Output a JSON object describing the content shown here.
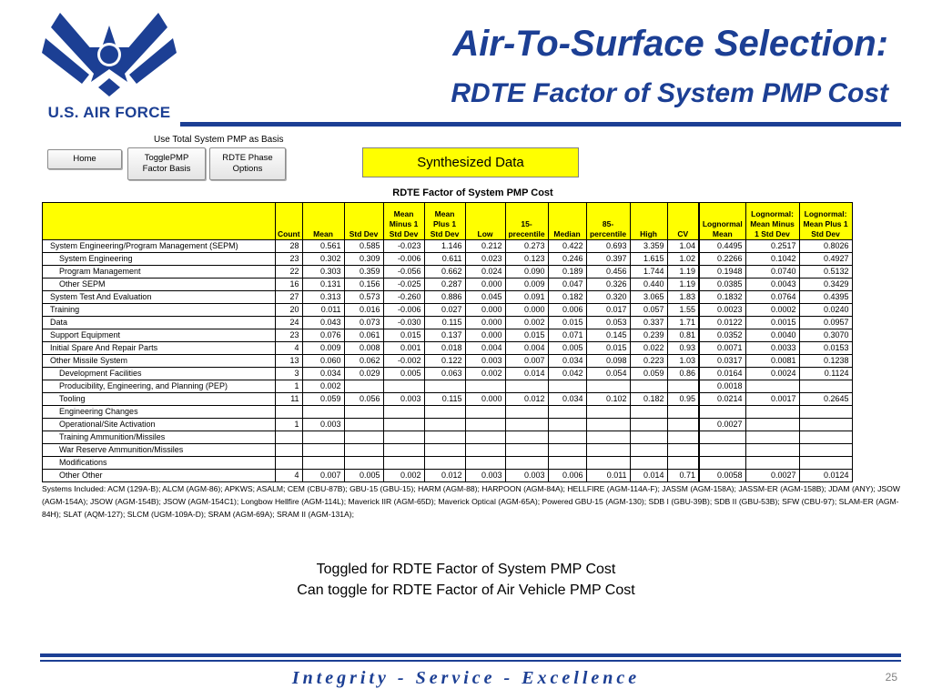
{
  "branding": {
    "wordmark": "U.S. AIR FORCE",
    "brand_color": "#1c3f94"
  },
  "slide": {
    "title_line1": "Air-To-Surface Selection:",
    "title_line2": "RDTE Factor of System PMP Cost",
    "caption_line1": "Toggled for RDTE Factor of System PMP Cost",
    "caption_line2": "Can toggle for RDTE Factor of Air Vehicle PMP Cost",
    "motto": "Integrity - Service - Excellence",
    "page_number": "25"
  },
  "spreadsheet": {
    "basis_label": "Use Total System PMP as Basis",
    "buttons": {
      "home": "Home",
      "toggle_line1": "TogglePMP",
      "toggle_line2": "Factor Basis",
      "rdte_line1": "RDTE Phase",
      "rdte_line2": "Options"
    },
    "highlight_label": "Synthesized Data",
    "highlight_color": "#ffff00",
    "table_title": "RDTE Factor of System PMP Cost",
    "headers": [
      "Count",
      "Mean",
      "Std Dev",
      "Mean Minus 1 Std Dev",
      "Mean Plus 1 Std Dev",
      "Low",
      "15-precentile",
      "Median",
      "85-percentile",
      "High",
      "CV",
      "Lognormal Mean",
      "Lognormal: Mean Minus 1 Std Dev",
      "Lognormal: Mean Plus 1 Std Dev"
    ],
    "rows": [
      {
        "label": "System Engineering/Program Management (SEPM)",
        "indent": false,
        "cells": [
          "28",
          "0.561",
          "0.585",
          "-0.023",
          "1.146",
          "0.212",
          "0.273",
          "0.422",
          "0.693",
          "3.359",
          "1.04",
          "0.4495",
          "0.2517",
          "0.8026"
        ]
      },
      {
        "label": "System Engineering",
        "indent": true,
        "cells": [
          "23",
          "0.302",
          "0.309",
          "-0.006",
          "0.611",
          "0.023",
          "0.123",
          "0.246",
          "0.397",
          "1.615",
          "1.02",
          "0.2266",
          "0.1042",
          "0.4927"
        ]
      },
      {
        "label": "Program Management",
        "indent": true,
        "cells": [
          "22",
          "0.303",
          "0.359",
          "-0.056",
          "0.662",
          "0.024",
          "0.090",
          "0.189",
          "0.456",
          "1.744",
          "1.19",
          "0.1948",
          "0.0740",
          "0.5132"
        ]
      },
      {
        "label": "Other SEPM",
        "indent": true,
        "cells": [
          "16",
          "0.131",
          "0.156",
          "-0.025",
          "0.287",
          "0.000",
          "0.009",
          "0.047",
          "0.326",
          "0.440",
          "1.19",
          "0.0385",
          "0.0043",
          "0.3429"
        ]
      },
      {
        "label": "System Test And Evaluation",
        "indent": false,
        "cells": [
          "27",
          "0.313",
          "0.573",
          "-0.260",
          "0.886",
          "0.045",
          "0.091",
          "0.182",
          "0.320",
          "3.065",
          "1.83",
          "0.1832",
          "0.0764",
          "0.4395"
        ]
      },
      {
        "label": "Training",
        "indent": false,
        "cells": [
          "20",
          "0.011",
          "0.016",
          "-0.006",
          "0.027",
          "0.000",
          "0.000",
          "0.006",
          "0.017",
          "0.057",
          "1.55",
          "0.0023",
          "0.0002",
          "0.0240"
        ]
      },
      {
        "label": "Data",
        "indent": false,
        "cells": [
          "24",
          "0.043",
          "0.073",
          "-0.030",
          "0.115",
          "0.000",
          "0.002",
          "0.015",
          "0.053",
          "0.337",
          "1.71",
          "0.0122",
          "0.0015",
          "0.0957"
        ]
      },
      {
        "label": "Support Equipment",
        "indent": false,
        "cells": [
          "23",
          "0.076",
          "0.061",
          "0.015",
          "0.137",
          "0.000",
          "0.015",
          "0.071",
          "0.145",
          "0.239",
          "0.81",
          "0.0352",
          "0.0040",
          "0.3070"
        ]
      },
      {
        "label": "Initial Spare And Repair Parts",
        "indent": false,
        "cells": [
          "4",
          "0.009",
          "0.008",
          "0.001",
          "0.018",
          "0.004",
          "0.004",
          "0.005",
          "0.015",
          "0.022",
          "0.93",
          "0.0071",
          "0.0033",
          "0.0153"
        ]
      },
      {
        "label": "Other Missile System",
        "indent": false,
        "cells": [
          "13",
          "0.060",
          "0.062",
          "-0.002",
          "0.122",
          "0.003",
          "0.007",
          "0.034",
          "0.098",
          "0.223",
          "1.03",
          "0.0317",
          "0.0081",
          "0.1238"
        ]
      },
      {
        "label": "Development Facilities",
        "indent": true,
        "cells": [
          "3",
          "0.034",
          "0.029",
          "0.005",
          "0.063",
          "0.002",
          "0.014",
          "0.042",
          "0.054",
          "0.059",
          "0.86",
          "0.0164",
          "0.0024",
          "0.1124"
        ]
      },
      {
        "label": "Producibility, Engineering, and Planning (PEP)",
        "indent": true,
        "cells": [
          "1",
          "0.002",
          "",
          "",
          "",
          "",
          "",
          "",
          "",
          "",
          "",
          "0.0018",
          "",
          ""
        ]
      },
      {
        "label": "Tooling",
        "indent": true,
        "cells": [
          "11",
          "0.059",
          "0.056",
          "0.003",
          "0.115",
          "0.000",
          "0.012",
          "0.034",
          "0.102",
          "0.182",
          "0.95",
          "0.0214",
          "0.0017",
          "0.2645"
        ]
      },
      {
        "label": "Engineering Changes",
        "indent": true,
        "cells": [
          "",
          "",
          "",
          "",
          "",
          "",
          "",
          "",
          "",
          "",
          "",
          "",
          "",
          ""
        ]
      },
      {
        "label": "Operational/Site Activation",
        "indent": true,
        "cells": [
          "1",
          "0.003",
          "",
          "",
          "",
          "",
          "",
          "",
          "",
          "",
          "",
          "0.0027",
          "",
          ""
        ]
      },
      {
        "label": "Training Ammunition/Missiles",
        "indent": true,
        "cells": [
          "",
          "",
          "",
          "",
          "",
          "",
          "",
          "",
          "",
          "",
          "",
          "",
          "",
          ""
        ]
      },
      {
        "label": "War Reserve Ammunition/Missiles",
        "indent": true,
        "cells": [
          "",
          "",
          "",
          "",
          "",
          "",
          "",
          "",
          "",
          "",
          "",
          "",
          "",
          ""
        ]
      },
      {
        "label": "Modifications",
        "indent": true,
        "cells": [
          "",
          "",
          "",
          "",
          "",
          "",
          "",
          "",
          "",
          "",
          "",
          "",
          "",
          ""
        ]
      },
      {
        "label": "Other Other",
        "indent": true,
        "cells": [
          "4",
          "0.007",
          "0.005",
          "0.002",
          "0.012",
          "0.003",
          "0.003",
          "0.006",
          "0.011",
          "0.014",
          "0.71",
          "0.0058",
          "0.0027",
          "0.0124"
        ]
      }
    ],
    "systems_included": "Systems Included: ACM (129A-B); ALCM (AGM-86); APKWS; ASALM; CEM (CBU-87B); GBU-15 (GBU-15); HARM (AGM-88); HARPOON (AGM-84A); HELLFIRE (AGM-114A-F); JASSM (AGM-158A); JASSM-ER (AGM-158B); JDAM (ANY); JSOW (AGM-154A); JSOW (AGM-154B); JSOW (AGM-154C1); Longbow Hellfire (AGM-114L); Maverick IIR (AGM-65D); Maverick Optical (AGM-65A); Powered GBU-15 (AGM-130); SDB I (GBU-39B); SDB II (GBU-53B); SFW (CBU-97); SLAM-ER (AGM-84H); SLAT (AQM-127); SLCM (UGM-109A-D); SRAM (AGM-69A); SRAM II (AGM-131A);"
  }
}
